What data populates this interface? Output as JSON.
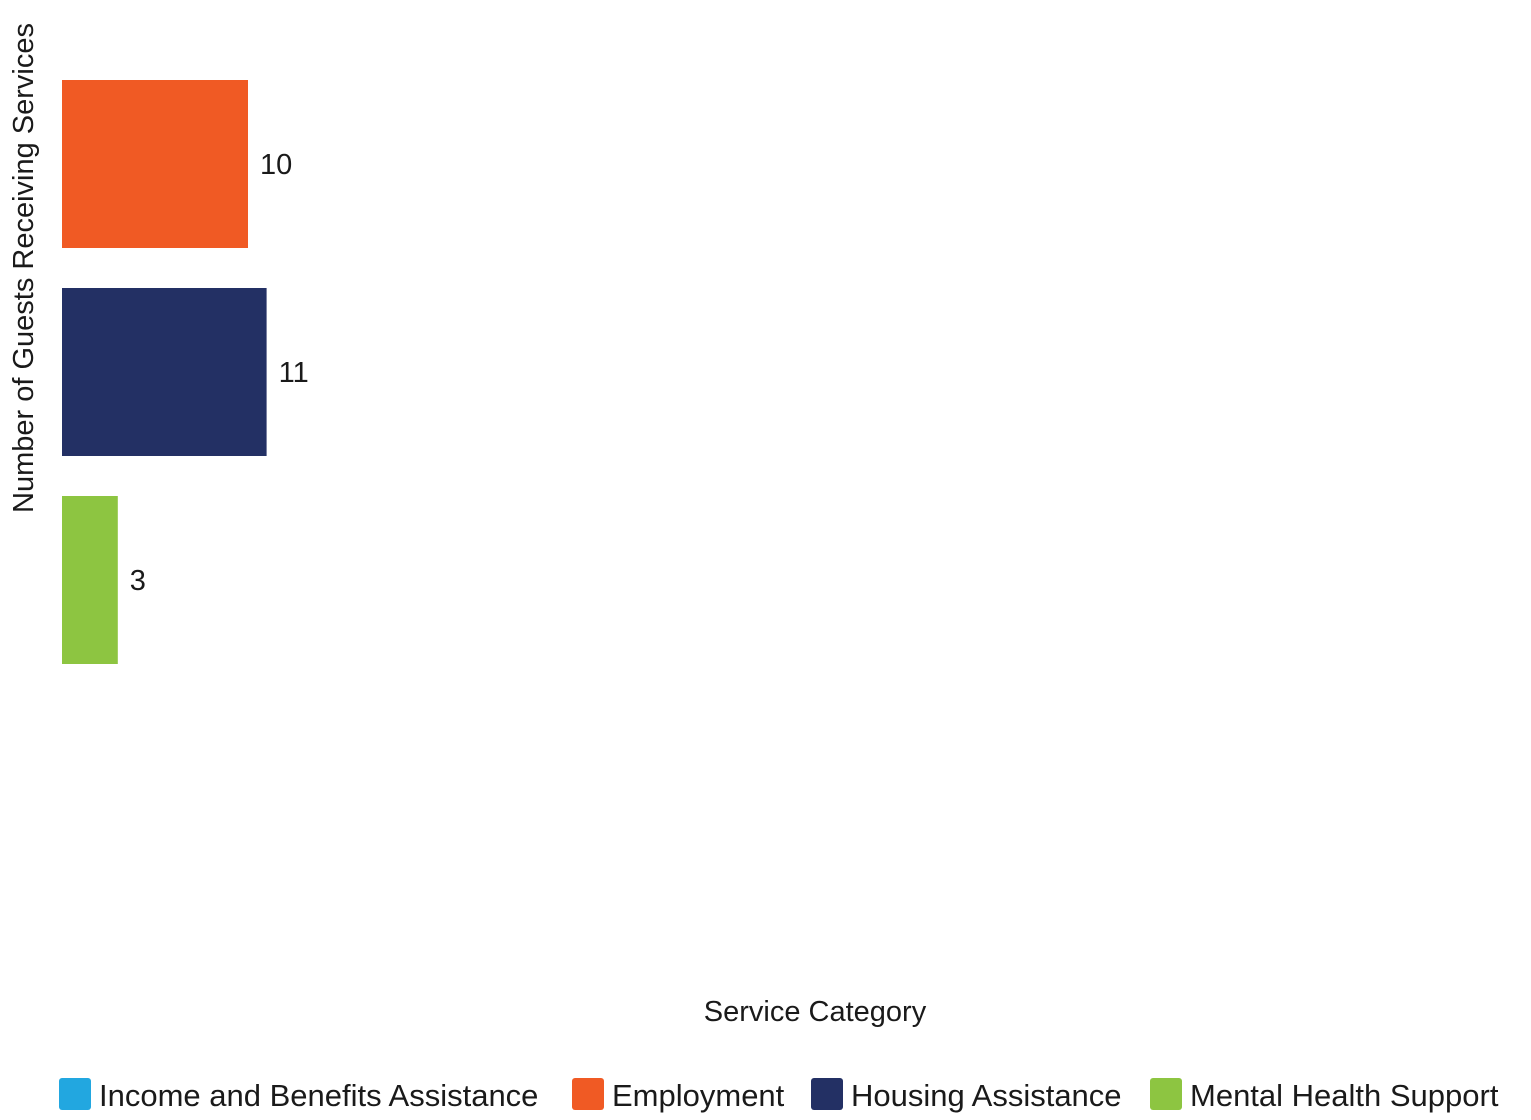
{
  "chart_data": {
    "type": "bar",
    "orientation": "horizontal",
    "xlabel": "Service Category",
    "ylabel": "Number of Guests Receiving Services",
    "series": [
      {
        "name": "Income and Benefits Assistance",
        "color": "#22a7e0",
        "value": 0
      },
      {
        "name": "Employment",
        "color": "#f05a24",
        "value": 10
      },
      {
        "name": "Housing Assistance",
        "color": "#233064",
        "value": 11
      },
      {
        "name": "Mental Health Support",
        "color": "#8dc541",
        "value": 3
      }
    ],
    "data_labels": [
      "10",
      "11",
      "3"
    ],
    "grid": false,
    "legend_position": "bottom"
  }
}
